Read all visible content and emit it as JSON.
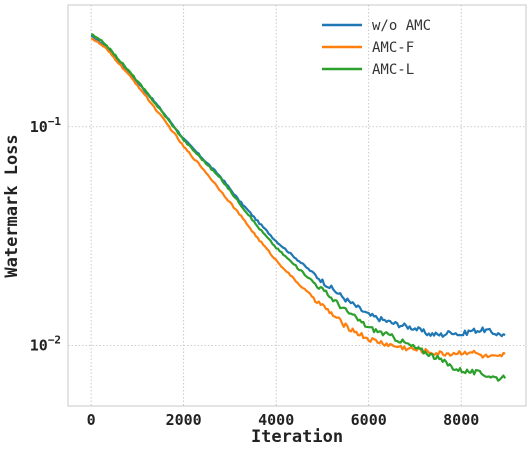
{
  "chart_data": {
    "type": "line",
    "xlabel": "Iteration",
    "ylabel": "Watermark Loss",
    "xlim": [
      -500,
      9400
    ],
    "ylim": [
      0.0053,
      0.36
    ],
    "yscale": "log",
    "grid": true,
    "legend_position": "top-right",
    "x_ticks": [
      {
        "value": 0,
        "label": "0"
      },
      {
        "value": 2000,
        "label": "2000"
      },
      {
        "value": 4000,
        "label": "4000"
      },
      {
        "value": 6000,
        "label": "6000"
      },
      {
        "value": 8000,
        "label": "8000"
      }
    ],
    "y_ticks": [
      {
        "value": 0.1,
        "label": "10",
        "exp": "−1"
      },
      {
        "value": 0.01,
        "label": "10",
        "exp": "−2"
      }
    ],
    "series": [
      {
        "name": "w/o AMC",
        "color": "#1f77b4",
        "x": [
          0,
          300,
          600,
          1000,
          1400,
          1800,
          2000,
          2400,
          2800,
          3200,
          3600,
          4000,
          4500,
          5000,
          5500,
          6000,
          6500,
          7000,
          7300,
          7600,
          7800,
          8000,
          8200,
          8500,
          8800,
          8950
        ],
        "y": [
          0.26,
          0.235,
          0.2,
          0.16,
          0.128,
          0.1,
          0.088,
          0.072,
          0.059,
          0.046,
          0.037,
          0.03,
          0.0243,
          0.0197,
          0.0163,
          0.0138,
          0.0127,
          0.012,
          0.0113,
          0.0112,
          0.0116,
          0.0112,
          0.0117,
          0.0118,
          0.0113,
          0.0112
        ]
      },
      {
        "name": "AMC-F",
        "color": "#ff7f0e",
        "x": [
          0,
          300,
          600,
          1000,
          1400,
          1800,
          2000,
          2400,
          2800,
          3200,
          3600,
          4000,
          4500,
          5000,
          5500,
          6000,
          6500,
          7000,
          7500,
          7800,
          8200,
          8500,
          8800,
          8950
        ],
        "y": [
          0.255,
          0.23,
          0.195,
          0.155,
          0.12,
          0.093,
          0.081,
          0.065,
          0.051,
          0.04,
          0.031,
          0.0245,
          0.019,
          0.0152,
          0.0123,
          0.0107,
          0.01,
          0.0096,
          0.0092,
          0.0092,
          0.0094,
          0.0089,
          0.0088,
          0.0092
        ]
      },
      {
        "name": "AMC-L",
        "color": "#2ca02c",
        "x": [
          0,
          300,
          600,
          1000,
          1400,
          1800,
          2000,
          2400,
          2800,
          3200,
          3600,
          4000,
          4500,
          5000,
          5500,
          6000,
          6500,
          7000,
          7300,
          7600,
          7900,
          8200,
          8400,
          8600,
          8800,
          8950
        ],
        "y": [
          0.265,
          0.24,
          0.203,
          0.162,
          0.127,
          0.099,
          0.087,
          0.071,
          0.058,
          0.045,
          0.035,
          0.028,
          0.0223,
          0.018,
          0.0145,
          0.0121,
          0.011,
          0.0098,
          0.0092,
          0.0085,
          0.0078,
          0.0076,
          0.0075,
          0.0073,
          0.0071,
          0.0071
        ]
      }
    ]
  }
}
